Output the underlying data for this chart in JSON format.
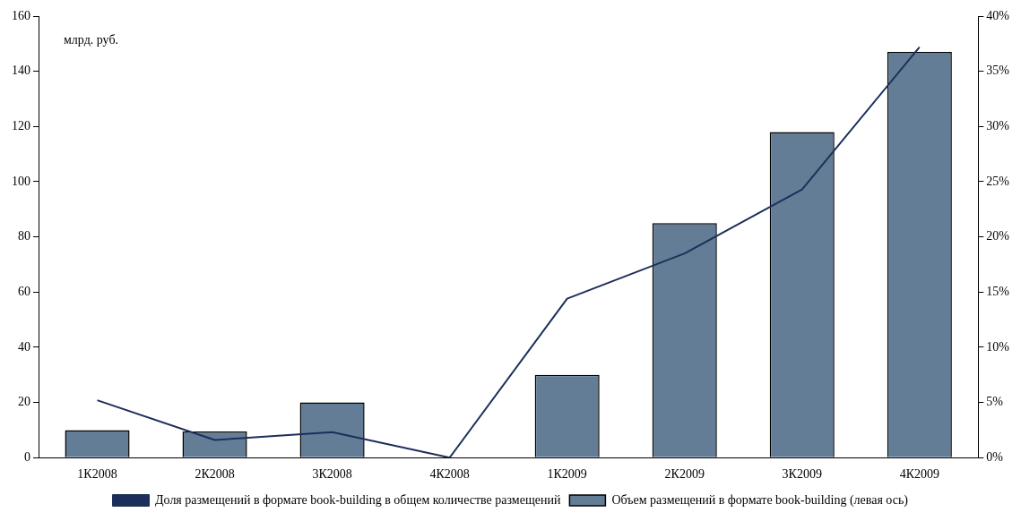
{
  "chart_data": {
    "type": "bar",
    "categories": [
      "1К2008",
      "2К2008",
      "3К2008",
      "4К2008",
      "1К2009",
      "2К2009",
      "3К2009",
      "4К2009"
    ],
    "series": [
      {
        "name": "Объем размещений в формате book-building (левая ось)",
        "color": "#637d96",
        "values": [
          10,
          9.5,
          20,
          0,
          30,
          85,
          118,
          147
        ]
      },
      {
        "name": "Доля размещений в формате book-building в общем количестве размещений",
        "type": "line",
        "axis": "y2",
        "color": "#1c2f5a",
        "values": [
          5.2,
          1.6,
          2.3,
          0,
          14.4,
          18.5,
          24.3,
          37.2
        ]
      }
    ],
    "ylim": [
      0,
      160
    ],
    "yticks": [
      0,
      20,
      40,
      60,
      80,
      100,
      120,
      140,
      160
    ],
    "y2lim": [
      0,
      40
    ],
    "y2ticks": [
      {
        "value": 0,
        "label": "0%"
      },
      {
        "value": 5,
        "label": "5%"
      },
      {
        "value": 10,
        "label": "10%"
      },
      {
        "value": 15,
        "label": "15%"
      },
      {
        "value": 20,
        "label": "20%"
      },
      {
        "value": 25,
        "label": "25%"
      },
      {
        "value": 30,
        "label": "30%"
      },
      {
        "value": 35,
        "label": "35%"
      },
      {
        "value": 40,
        "label": "40%"
      }
    ],
    "annotations": [
      "млрд. руб."
    ],
    "grid": false,
    "legend": "bottom",
    "marker": "none"
  }
}
